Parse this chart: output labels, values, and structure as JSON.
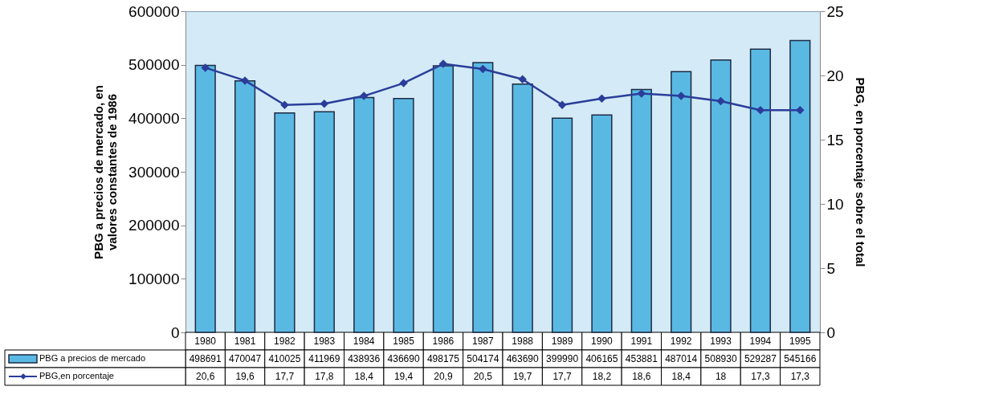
{
  "chart_data": {
    "type": "bar",
    "ylabel": "PBG a precios de mercado, en valores constantes de 1986",
    "y2label": "PBG, en porcentaje sobre el total",
    "categories": [
      "1980",
      "1981",
      "1982",
      "1983",
      "1984",
      "1985",
      "1986",
      "1987",
      "1988",
      "1989",
      "1990",
      "1991",
      "1992",
      "1993",
      "1994",
      "1995"
    ],
    "series": [
      {
        "name": "PBG a precios de mercado",
        "color": "#5ab9e3",
        "values": [
          498691,
          470047,
          410025,
          411969,
          438936,
          436690,
          498175,
          504174,
          463690,
          399990,
          406165,
          453881,
          487014,
          508930,
          529287,
          545166
        ],
        "value_labels": [
          "498691",
          "470047",
          "410025",
          "411969",
          "438936",
          "436690",
          "498175",
          "504174",
          "463690",
          "399990",
          "406165",
          "453881",
          "487014",
          "508930",
          "529287",
          "545166"
        ]
      },
      {
        "name": "PBG,en porcentaje",
        "type": "line",
        "axis": "y2",
        "color": "#2b3d9a",
        "values": [
          20.6,
          19.6,
          17.7,
          17.8,
          18.4,
          19.4,
          20.9,
          20.5,
          19.7,
          17.7,
          18.2,
          18.6,
          18.4,
          18,
          17.3,
          17.3
        ],
        "value_labels": [
          "20,6",
          "19,6",
          "17,7",
          "17,8",
          "18,4",
          "19,4",
          "20,9",
          "20,5",
          "19,7",
          "17,7",
          "18,2",
          "18,6",
          "18,4",
          "18",
          "17,3",
          "17,3"
        ]
      }
    ],
    "ylim": [
      0,
      600000
    ],
    "yticks": [
      0,
      100000,
      200000,
      300000,
      400000,
      500000,
      600000
    ],
    "y2lim": [
      0,
      25
    ],
    "y2ticks": [
      0,
      5,
      10,
      15,
      20,
      25
    ],
    "marker": "diamond",
    "legend": "bottom left"
  }
}
